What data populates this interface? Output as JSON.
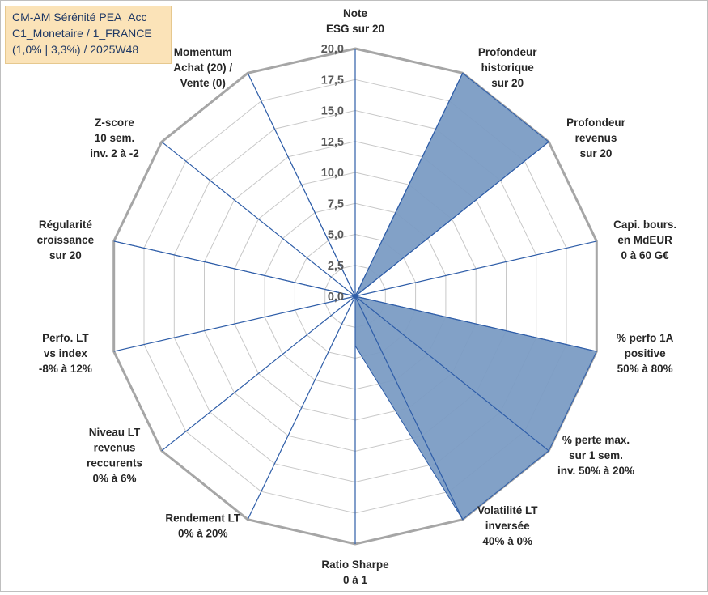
{
  "title_box": {
    "line1": "CM-AM Sérénité PEA_Acc",
    "line2": "C1_Monetaire / 1_FRANCE",
    "line3": "(1,0% | 3,3%) / 2025W48"
  },
  "colors": {
    "fill": "#7b9cc4",
    "spoke": "#2e5da8",
    "grid": "#c8c8c8",
    "outer_grid": "#a6a6a6",
    "title_bg": "#fbe3b8",
    "title_text": "#1f3864"
  },
  "chart_data": {
    "type": "radar",
    "rmin": 0,
    "rmax": 20,
    "tick_values": [
      0,
      2.5,
      5,
      7.5,
      10,
      12.5,
      15,
      17.5,
      20
    ],
    "tick_labels": [
      "0,0",
      "2,5",
      "5,0",
      "7,5",
      "10,0",
      "12,5",
      "15,0",
      "17,5",
      "20,0"
    ],
    "axes": [
      {
        "lines": [
          "Note",
          "ESG sur 20"
        ],
        "value": 0
      },
      {
        "lines": [
          "Profondeur",
          "historique",
          "sur 20"
        ],
        "value": 20
      },
      {
        "lines": [
          "Profondeur",
          "revenus",
          "sur 20"
        ],
        "value": 20
      },
      {
        "lines": [
          "Capi. bours.",
          "en MdEUR",
          "0 à 60 G€"
        ],
        "value": 0
      },
      {
        "lines": [
          "% perfo 1A",
          "positive",
          "50% à 80%"
        ],
        "value": 20
      },
      {
        "lines": [
          "% perte max.",
          "sur 1 sem.",
          "inv. 50% à 20%"
        ],
        "value": 20
      },
      {
        "lines": [
          "Volatilité LT",
          "inversée",
          "40% à 0%"
        ],
        "value": 20
      },
      {
        "lines": [
          "Ratio Sharpe",
          "0 à 1"
        ],
        "value": 4
      },
      {
        "lines": [
          "Rendement LT",
          "0% à 20%"
        ],
        "value": 0
      },
      {
        "lines": [
          "Niveau LT",
          "revenus",
          "reccurents",
          "0% à 6%"
        ],
        "value": 0
      },
      {
        "lines": [
          "Perfo. LT",
          "vs index",
          "-8% à 12%"
        ],
        "value": 0
      },
      {
        "lines": [
          "Régularité",
          "croissance",
          "sur 20"
        ],
        "value": 20
      },
      {
        "lines": [
          "Z-score",
          "10 sem.",
          "inv. 2 à -2"
        ],
        "value": 0
      },
      {
        "lines": [
          "Momentum",
          "Achat (20) /",
          "Vente (0)"
        ],
        "value": 15.5
      }
    ],
    "grid": true,
    "legend": "none"
  }
}
